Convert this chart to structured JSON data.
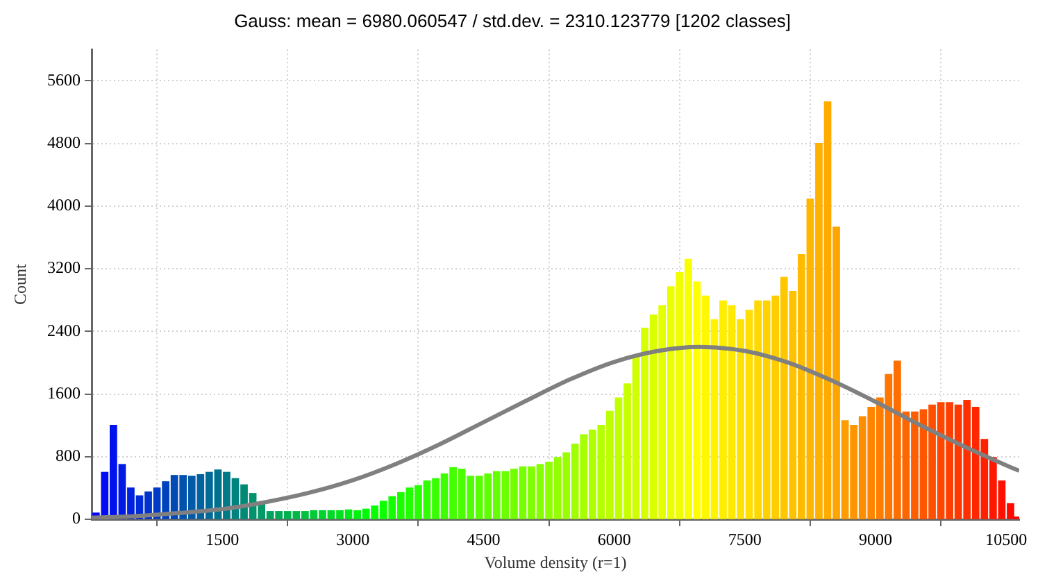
{
  "chart_data": {
    "type": "histogram",
    "title": "Gauss: mean = 6980.060547 / std.dev. = 2310.123779 [1202 classes]",
    "xlabel": "Volume density (r=1)",
    "ylabel": "Count",
    "xlim": [
      0,
      10650
    ],
    "xticks": [
      1500,
      3000,
      4500,
      6000,
      7500,
      9000,
      10500
    ],
    "ylim": [
      0,
      6000
    ],
    "yticks": [
      0,
      800,
      1600,
      2400,
      3200,
      4000,
      4800,
      5600
    ],
    "grid": true,
    "series": [
      {
        "bins": [
          0,
          100,
          200,
          300,
          400,
          500,
          600,
          700,
          800,
          900,
          1000,
          1100,
          1200,
          1300,
          1400,
          1500,
          1600,
          1700,
          1800,
          1900,
          2000,
          2100,
          2200,
          2300,
          2400,
          2500,
          2600,
          2700,
          2800,
          2900,
          3000,
          3100,
          3200,
          3300,
          3400,
          3500,
          3600,
          3700,
          3800,
          3900,
          4000,
          4100,
          4200,
          4300,
          4400,
          4500,
          4600,
          4700,
          4800,
          4900,
          5000,
          5100,
          5200,
          5300,
          5400,
          5500,
          5600,
          5700,
          5800,
          5900,
          6000,
          6100,
          6200,
          6300,
          6400,
          6500,
          6600,
          6700,
          6800,
          6900,
          7000,
          7100,
          7200,
          7300,
          7400,
          7500,
          7600,
          7700,
          7800,
          7900,
          8000,
          8100,
          8200,
          8300,
          8400,
          8500,
          8600,
          8700,
          8800,
          8900,
          9000,
          9100,
          9200,
          9300,
          9400,
          9500,
          9600,
          9700,
          9800,
          9900,
          10000,
          10100,
          10200,
          10300,
          10400,
          10500,
          10600,
          10650
        ],
        "values": [
          80,
          600,
          1200,
          700,
          400,
          300,
          350,
          400,
          480,
          560,
          560,
          550,
          570,
          600,
          630,
          600,
          520,
          440,
          330,
          200,
          100,
          100,
          100,
          100,
          100,
          110,
          110,
          110,
          110,
          120,
          110,
          130,
          170,
          230,
          290,
          340,
          400,
          430,
          490,
          520,
          580,
          660,
          640,
          550,
          550,
          580,
          610,
          610,
          640,
          670,
          670,
          700,
          730,
          790,
          850,
          960,
          1080,
          1140,
          1200,
          1380,
          1550,
          1730,
          2080,
          2440,
          2610,
          2730,
          2970,
          3150,
          3320,
          3030,
          2850,
          2550,
          2790,
          2730,
          2550,
          2670,
          2790,
          2790,
          2850,
          3090,
          2910,
          3380,
          4090,
          4800,
          5330,
          3730,
          1260,
          1200,
          1310,
          1430,
          1550,
          1850,
          2020,
          1370,
          1370,
          1400,
          1460,
          1490,
          1490,
          1460,
          1520,
          1430,
          1020,
          790,
          490,
          200,
          30
        ],
        "colors": [
          "#0000ff",
          "#000af5",
          "#0012ee",
          "#001ae6",
          "#0022de",
          "#002ad6",
          "#0032ce",
          "#003ac6",
          "#0042be",
          "#004ab6",
          "#0052ae",
          "#005aa6",
          "#00629e",
          "#006a96",
          "#00728e",
          "#007a86",
          "#00827e",
          "#008a76",
          "#00926e",
          "#009a66",
          "#00a25e",
          "#00aa56",
          "#00b24e",
          "#00ba46",
          "#00c23e",
          "#00ca36",
          "#00d22e",
          "#00da26",
          "#00e21e",
          "#00ea16",
          "#00f20e",
          "#00fa06",
          "#07ff00",
          "#0eff00",
          "#14ff00",
          "#1bff00",
          "#22ff00",
          "#28ff00",
          "#2fff00",
          "#36ff00",
          "#3cff00",
          "#43ff00",
          "#4aff00",
          "#50ff00",
          "#57ff00",
          "#5eff00",
          "#64ff00",
          "#6bff00",
          "#72ff00",
          "#78ff00",
          "#7fff00",
          "#86ff00",
          "#8cff00",
          "#93ff00",
          "#9aff00",
          "#a0ff00",
          "#a7ff00",
          "#aeff00",
          "#b4ff00",
          "#bbff00",
          "#c2ff00",
          "#c8ff00",
          "#cfff00",
          "#d6ff00",
          "#dcff00",
          "#e3ff00",
          "#eaff00",
          "#f0ff00",
          "#f7ff00",
          "#ffff00",
          "#fff900",
          "#fff400",
          "#ffee00",
          "#ffe900",
          "#ffe300",
          "#ffde00",
          "#ffd800",
          "#ffd200",
          "#ffcd00",
          "#ffc700",
          "#ffc200",
          "#ffbc00",
          "#ffb600",
          "#ffb100",
          "#ffab00",
          "#ffa500",
          "#ff9d00",
          "#ff9500",
          "#ff8d00",
          "#ff8500",
          "#ff7e00",
          "#ff7600",
          "#ff6e00",
          "#ff6600",
          "#ff5e00",
          "#ff5600",
          "#ff4f00",
          "#ff4700",
          "#ff3f00",
          "#ff3700",
          "#ff2f00",
          "#ff2700",
          "#ff2000",
          "#ff1800",
          "#ff1000",
          "#ff0800",
          "#ff0000"
        ]
      },
      {
        "type": "line",
        "color": "#808080",
        "x": [
          0,
          500,
          1000,
          1500,
          2000,
          2500,
          3000,
          3500,
          4000,
          4500,
          5000,
          5500,
          6000,
          6500,
          6980,
          7500,
          8000,
          8500,
          9000,
          9500,
          10000,
          10500,
          10650
        ],
        "values": [
          20,
          40,
          80,
          130,
          220,
          340,
          500,
          710,
          960,
          1240,
          1520,
          1790,
          2010,
          2150,
          2200,
          2150,
          2000,
          1770,
          1500,
          1210,
          940,
          690,
          620
        ]
      }
    ]
  }
}
